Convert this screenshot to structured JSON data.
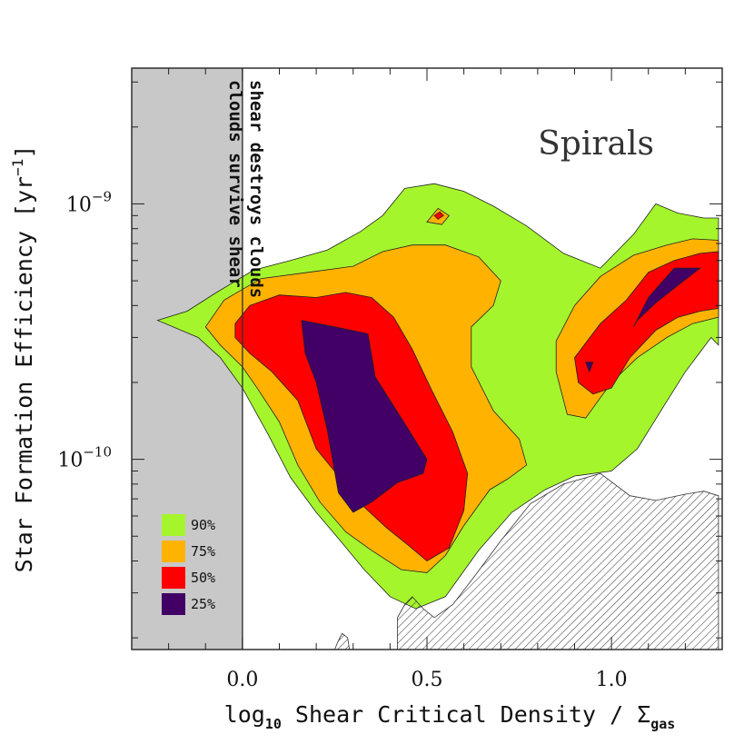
{
  "chart_data": {
    "type": "filled-contour",
    "panel_label": "Spirals",
    "xlabel": {
      "main": "log",
      "sub": "10",
      "rest": " Shear Critical Density / Σ",
      "sub2": "gas"
    },
    "ylabel": {
      "main": "Star Formation Efficiency [yr",
      "sup": "−1",
      "end": "]"
    },
    "xlim": [
      -0.3,
      1.3
    ],
    "ylim": [
      1.8e-11,
      3.4e-09
    ],
    "x_ticks": [
      {
        "value": 0.0,
        "label": "0.0"
      },
      {
        "value": 0.5,
        "label": "0.5"
      },
      {
        "value": 1.0,
        "label": "1.0"
      }
    ],
    "y_ticks": [
      {
        "value": 1e-09,
        "base": "10",
        "exp": "−9"
      },
      {
        "value": 1e-10,
        "base": "10",
        "exp": "−10"
      }
    ],
    "shaded_region": {
      "x_from": -0.3,
      "x_to": 0.0,
      "color": "#c8c8c8"
    },
    "divider_x": 0.0,
    "annotations": {
      "line1": "shear destroys clouds",
      "line2": "clouds survive shear"
    },
    "legend": [
      {
        "label": "90%",
        "color": "#a5f52c"
      },
      {
        "label": "75%",
        "color": "#ffb300"
      },
      {
        "label": "50%",
        "color": "#ff0000"
      },
      {
        "label": "25%",
        "color": "#420066"
      }
    ],
    "contours": [
      {
        "level": "90%",
        "color": "#a5f52c",
        "regions": [
          [
            [
              -0.23,
              3.5e-10
            ],
            [
              -0.15,
              3.8e-10
            ],
            [
              -0.07,
              4.5e-10
            ],
            [
              0.03,
              5.5e-10
            ],
            [
              0.13,
              6e-10
            ],
            [
              0.23,
              6.6e-10
            ],
            [
              0.32,
              7.8e-10
            ],
            [
              0.38,
              9e-10
            ],
            [
              0.44,
              1.15e-09
            ],
            [
              0.52,
              1.2e-09
            ],
            [
              0.6,
              1.12e-09
            ],
            [
              0.68,
              9.8e-10
            ],
            [
              0.77,
              8.2e-10
            ],
            [
              0.87,
              6.4e-10
            ],
            [
              0.97,
              5.6e-10
            ],
            [
              1.06,
              7.6e-10
            ],
            [
              1.12,
              1e-09
            ],
            [
              1.18,
              9.2e-10
            ],
            [
              1.25,
              8.8e-10
            ],
            [
              1.29,
              8.8e-10
            ],
            [
              1.29,
              2.8e-10
            ],
            [
              1.27,
              3e-10
            ],
            [
              1.2,
              2.2e-10
            ],
            [
              1.14,
              1.6e-10
            ],
            [
              1.07,
              1.1e-10
            ],
            [
              1.0,
              9e-11
            ],
            [
              0.9,
              8.6e-11
            ],
            [
              0.82,
              7.6e-11
            ],
            [
              0.73,
              6.2e-11
            ],
            [
              0.64,
              4.4e-11
            ],
            [
              0.55,
              2.9e-11
            ],
            [
              0.47,
              2.6e-11
            ],
            [
              0.4,
              2.9e-11
            ],
            [
              0.33,
              3.7e-11
            ],
            [
              0.26,
              4.9e-11
            ],
            [
              0.2,
              6.2e-11
            ],
            [
              0.13,
              8.5e-11
            ],
            [
              0.07,
              1.25e-10
            ],
            [
              0.0,
              1.9e-10
            ],
            [
              -0.06,
              2.5e-10
            ],
            [
              -0.12,
              3e-10
            ],
            [
              -0.23,
              3.5e-10
            ]
          ]
        ]
      },
      {
        "level": "75%",
        "color": "#ffb300",
        "regions": [
          [
            [
              -0.1,
              3.3e-10
            ],
            [
              -0.05,
              4.2e-10
            ],
            [
              0.05,
              5.1e-10
            ],
            [
              0.18,
              5.4e-10
            ],
            [
              0.3,
              5.7e-10
            ],
            [
              0.38,
              6.5e-10
            ],
            [
              0.46,
              6.9e-10
            ],
            [
              0.55,
              6.9e-10
            ],
            [
              0.64,
              6.2e-10
            ],
            [
              0.7,
              5e-10
            ],
            [
              0.68,
              4e-10
            ],
            [
              0.62,
              3.3e-10
            ],
            [
              0.62,
              2.3e-10
            ],
            [
              0.68,
              1.55e-10
            ],
            [
              0.75,
              1.2e-10
            ],
            [
              0.77,
              9.5e-11
            ],
            [
              0.72,
              8.4e-11
            ],
            [
              0.67,
              7.6e-11
            ],
            [
              0.6,
              5.5e-11
            ],
            [
              0.55,
              4.2e-11
            ],
            [
              0.5,
              3.6e-11
            ],
            [
              0.43,
              3.7e-11
            ],
            [
              0.35,
              4.4e-11
            ],
            [
              0.28,
              5.2e-11
            ],
            [
              0.21,
              6.8e-11
            ],
            [
              0.15,
              9.5e-11
            ],
            [
              0.1,
              1.4e-10
            ],
            [
              0.04,
              1.9e-10
            ],
            [
              0.0,
              2.3e-10
            ],
            [
              -0.06,
              2.8e-10
            ],
            [
              -0.1,
              3.3e-10
            ]
          ],
          [
            [
              0.85,
              2.9e-10
            ],
            [
              0.9,
              4e-10
            ],
            [
              0.97,
              5.2e-10
            ],
            [
              1.06,
              6.3e-10
            ],
            [
              1.15,
              6.9e-10
            ],
            [
              1.22,
              7.3e-10
            ],
            [
              1.29,
              7.2e-10
            ],
            [
              1.29,
              3.6e-10
            ],
            [
              1.22,
              3.4e-10
            ],
            [
              1.15,
              3e-10
            ],
            [
              1.07,
              2.5e-10
            ],
            [
              1.0,
              2e-10
            ],
            [
              0.93,
              1.45e-10
            ],
            [
              0.88,
              1.5e-10
            ],
            [
              0.85,
              2.2e-10
            ],
            [
              0.85,
              2.9e-10
            ]
          ],
          [
            [
              0.5,
              8.5e-10
            ],
            [
              0.53,
              9.6e-10
            ],
            [
              0.56,
              9e-10
            ],
            [
              0.54,
              8.3e-10
            ],
            [
              0.5,
              8.5e-10
            ]
          ]
        ]
      },
      {
        "level": "50%",
        "color": "#ff0000",
        "regions": [
          [
            [
              -0.02,
              3.4e-10
            ],
            [
              0.02,
              4e-10
            ],
            [
              0.1,
              4.4e-10
            ],
            [
              0.2,
              4.3e-10
            ],
            [
              0.28,
              4.5e-10
            ],
            [
              0.35,
              4.3e-10
            ],
            [
              0.41,
              3.6e-10
            ],
            [
              0.46,
              2.7e-10
            ],
            [
              0.51,
              1.9e-10
            ],
            [
              0.57,
              1.28e-10
            ],
            [
              0.61,
              8.8e-11
            ],
            [
              0.6,
              6.3e-11
            ],
            [
              0.56,
              4.5e-11
            ],
            [
              0.5,
              4e-11
            ],
            [
              0.45,
              4.6e-11
            ],
            [
              0.39,
              5.4e-11
            ],
            [
              0.32,
              6.7e-11
            ],
            [
              0.26,
              8.6e-11
            ],
            [
              0.2,
              1.1e-10
            ],
            [
              0.15,
              1.7e-10
            ],
            [
              0.08,
              2.2e-10
            ],
            [
              0.02,
              2.6e-10
            ],
            [
              -0.02,
              3e-10
            ],
            [
              -0.02,
              3.4e-10
            ]
          ],
          [
            [
              0.9,
              2.5e-10
            ],
            [
              0.97,
              3.4e-10
            ],
            [
              1.04,
              4.2e-10
            ],
            [
              1.1,
              5.4e-10
            ],
            [
              1.17,
              6e-10
            ],
            [
              1.24,
              6.4e-10
            ],
            [
              1.29,
              6.5e-10
            ],
            [
              1.29,
              3.9e-10
            ],
            [
              1.24,
              3.8e-10
            ],
            [
              1.18,
              3.6e-10
            ],
            [
              1.12,
              3.2e-10
            ],
            [
              1.05,
              2.5e-10
            ],
            [
              1.0,
              1.9e-10
            ],
            [
              0.95,
              1.8e-10
            ],
            [
              0.91,
              2e-10
            ],
            [
              0.9,
              2.5e-10
            ]
          ],
          [
            [
              0.52,
              9e-10
            ],
            [
              0.535,
              9.3e-10
            ],
            [
              0.545,
              9e-10
            ],
            [
              0.53,
              8.7e-10
            ],
            [
              0.52,
              9e-10
            ]
          ]
        ]
      },
      {
        "level": "25%",
        "color": "#420066",
        "regions": [
          [
            [
              0.16,
              3.5e-10
            ],
            [
              0.25,
              3.3e-10
            ],
            [
              0.34,
              3.1e-10
            ],
            [
              0.36,
              2.1e-10
            ],
            [
              0.44,
              1.38e-10
            ],
            [
              0.5,
              1e-10
            ],
            [
              0.49,
              8.8e-11
            ],
            [
              0.42,
              8.1e-11
            ],
            [
              0.35,
              6.8e-11
            ],
            [
              0.3,
              6.2e-11
            ],
            [
              0.26,
              7.4e-11
            ],
            [
              0.23,
              1.3e-10
            ],
            [
              0.2,
              2e-10
            ],
            [
              0.17,
              2.6e-10
            ],
            [
              0.16,
              3.5e-10
            ]
          ],
          [
            [
              1.06,
              3.3e-10
            ],
            [
              1.1,
              4.3e-10
            ],
            [
              1.17,
              5.6e-10
            ],
            [
              1.24,
              5.6e-10
            ],
            [
              1.18,
              4.8e-10
            ],
            [
              1.12,
              4.1e-10
            ],
            [
              1.07,
              3.5e-10
            ],
            [
              1.06,
              3.3e-10
            ]
          ],
          [
            [
              0.93,
              2.4e-10
            ],
            [
              0.95,
              2.4e-10
            ],
            [
              0.94,
              2.2e-10
            ],
            [
              0.93,
              2.4e-10
            ]
          ]
        ]
      }
    ],
    "hatched_regions": [
      [
        [
          0.42,
          1.8e-11
        ],
        [
          0.42,
          2.4e-11
        ],
        [
          0.44,
          2.7e-11
        ],
        [
          0.46,
          2.9e-11
        ],
        [
          0.49,
          2.6e-11
        ],
        [
          0.52,
          2.4e-11
        ],
        [
          0.57,
          2.7e-11
        ],
        [
          0.63,
          3.5e-11
        ],
        [
          0.7,
          4.8e-11
        ],
        [
          0.78,
          6.7e-11
        ],
        [
          0.87,
          8e-11
        ],
        [
          0.97,
          8.8e-11
        ],
        [
          1.05,
          7.2e-11
        ],
        [
          1.12,
          6.9e-11
        ],
        [
          1.2,
          7.3e-11
        ],
        [
          1.25,
          7.5e-11
        ],
        [
          1.29,
          7.2e-11
        ],
        [
          1.29,
          1.8e-11
        ],
        [
          0.42,
          1.8e-11
        ]
      ],
      [
        [
          0.25,
          1.8e-11
        ],
        [
          0.26,
          1.95e-11
        ],
        [
          0.27,
          2.08e-11
        ],
        [
          0.285,
          2e-11
        ],
        [
          0.29,
          1.8e-11
        ],
        [
          0.25,
          1.8e-11
        ]
      ]
    ]
  }
}
